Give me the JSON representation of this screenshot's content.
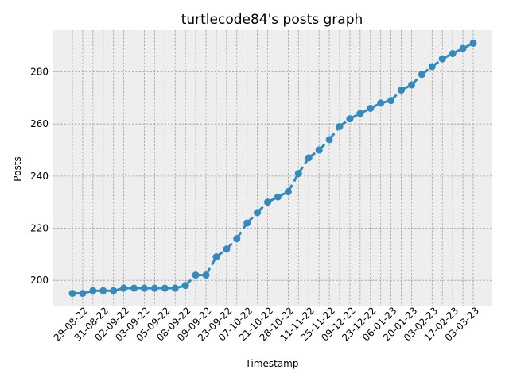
{
  "chart_data": {
    "type": "line",
    "title": "turtlecode84's posts graph",
    "xlabel": "Timestamp",
    "ylabel": "Posts",
    "ylim": [
      190,
      296
    ],
    "yticks": [
      200,
      220,
      240,
      260,
      280
    ],
    "grid": true,
    "colors": {
      "line": "#348abd",
      "background": "#eeeeee",
      "grid": "#a0a0a0"
    },
    "x_tick_labels": [
      "29-08-22",
      "31-08-22",
      "02-09-22",
      "03-09-22",
      "05-09-22",
      "08-09-22",
      "09-09-22",
      "23-09-22",
      "07-10-22",
      "21-10-22",
      "28-10-22",
      "11-11-22",
      "25-11-22",
      "09-12-22",
      "23-12-22",
      "06-01-23",
      "20-01-23",
      "03-02-23",
      "17-02-23",
      "03-03-23"
    ],
    "series": [
      {
        "values": [
          195,
          195,
          196,
          196,
          196,
          197,
          197,
          197,
          197,
          197,
          197,
          198,
          202,
          202,
          209,
          212,
          216,
          222,
          226,
          230,
          232,
          234,
          241,
          247,
          250,
          254,
          259,
          262,
          264,
          266,
          268,
          269,
          273,
          275,
          279,
          282,
          285,
          287,
          289,
          291
        ]
      }
    ]
  }
}
